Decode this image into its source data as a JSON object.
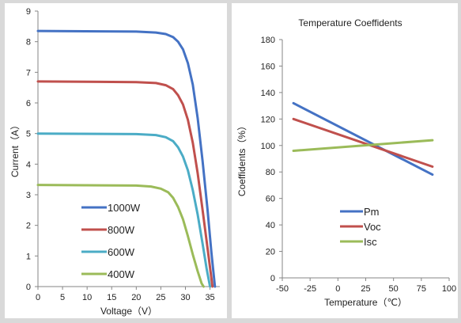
{
  "chart_data": [
    {
      "type": "line",
      "title": "",
      "xlabel": "Voltage（V）",
      "ylabel": "Current（A）",
      "xlim": [
        0,
        37
      ],
      "ylim": [
        0,
        9
      ],
      "xticks": [
        "0",
        "5",
        "10",
        "15",
        "20",
        "25",
        "30",
        "35"
      ],
      "yticks": [
        "0",
        "1",
        "2",
        "3",
        "4",
        "5",
        "6",
        "7",
        "8",
        "9"
      ],
      "grid": false,
      "legend_position": "bottom-center",
      "series": [
        {
          "name": "1000W",
          "color": "#4472c4",
          "points": [
            [
              0,
              8.35
            ],
            [
              20,
              8.33
            ],
            [
              24,
              8.3
            ],
            [
              26,
              8.25
            ],
            [
              27.5,
              8.15
            ],
            [
              28.5,
              8.0
            ],
            [
              29.5,
              7.75
            ],
            [
              30.5,
              7.3
            ],
            [
              31.5,
              6.6
            ],
            [
              32.5,
              5.5
            ],
            [
              33.5,
              4.1
            ],
            [
              34.5,
              2.5
            ],
            [
              35.3,
              1.1
            ],
            [
              36,
              0
            ]
          ]
        },
        {
          "name": "800W",
          "color": "#c0504d",
          "points": [
            [
              0,
              6.7
            ],
            [
              20,
              6.68
            ],
            [
              24,
              6.65
            ],
            [
              26,
              6.58
            ],
            [
              27.5,
              6.45
            ],
            [
              28.5,
              6.25
            ],
            [
              29.5,
              5.95
            ],
            [
              30.5,
              5.45
            ],
            [
              31.5,
              4.7
            ],
            [
              32.5,
              3.7
            ],
            [
              33.5,
              2.5
            ],
            [
              34.5,
              1.25
            ],
            [
              35.5,
              0
            ]
          ]
        },
        {
          "name": "600W",
          "color": "#4bacc6",
          "points": [
            [
              0,
              5.0
            ],
            [
              20,
              4.98
            ],
            [
              24,
              4.95
            ],
            [
              26,
              4.88
            ],
            [
              27.5,
              4.75
            ],
            [
              28.5,
              4.55
            ],
            [
              29.5,
              4.25
            ],
            [
              30.5,
              3.8
            ],
            [
              31.5,
              3.15
            ],
            [
              32.5,
              2.35
            ],
            [
              33.5,
              1.4
            ],
            [
              34.3,
              0.6
            ],
            [
              35,
              0
            ]
          ]
        },
        {
          "name": "400W",
          "color": "#9bbb59",
          "points": [
            [
              0,
              3.32
            ],
            [
              20,
              3.3
            ],
            [
              23,
              3.27
            ],
            [
              25,
              3.2
            ],
            [
              26.5,
              3.08
            ],
            [
              27.5,
              2.9
            ],
            [
              28.5,
              2.6
            ],
            [
              29.5,
              2.2
            ],
            [
              30.5,
              1.65
            ],
            [
              31.5,
              1.05
            ],
            [
              32.5,
              0.5
            ],
            [
              33.3,
              0.1
            ],
            [
              33.7,
              0
            ]
          ]
        }
      ]
    },
    {
      "type": "line",
      "title": "Temperature Coeffidents",
      "xlabel": "Temperature（℃）",
      "ylabel": "Coeffidents（%）",
      "xlim": [
        -50,
        100
      ],
      "ylim": [
        0,
        180
      ],
      "xticks": [
        "-50",
        "-25",
        "0",
        "25",
        "50",
        "75",
        "100"
      ],
      "yticks": [
        "0",
        "20",
        "40",
        "60",
        "80",
        "100",
        "120",
        "140",
        "160",
        "180"
      ],
      "grid": false,
      "legend_position": "bottom-center",
      "series": [
        {
          "name": "Pm",
          "color": "#4472c4",
          "x": [
            -40,
            85
          ],
          "y": [
            132,
            78
          ]
        },
        {
          "name": "Voc",
          "color": "#c0504d",
          "x": [
            -40,
            85
          ],
          "y": [
            120,
            84
          ]
        },
        {
          "name": "Isc",
          "color": "#9bbb59",
          "x": [
            -40,
            85
          ],
          "y": [
            96,
            104
          ]
        }
      ]
    }
  ]
}
